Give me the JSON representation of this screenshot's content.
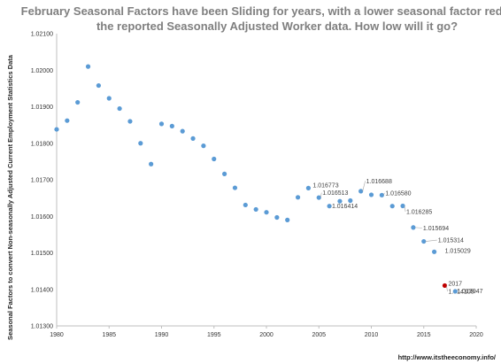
{
  "chart_data": {
    "type": "scatter",
    "title_lines": [
      "February Seasonal Factors have been Sliding for years, with a lower seasonal factor reducing",
      "the reported Seasonally Adjusted Worker data. How low will it go?"
    ],
    "ylabel": "Seasonal Factors to convert Non-seasonally Adjusted Current Employment Statistics Data",
    "xlabel": "",
    "xlim": [
      1980,
      2020
    ],
    "ylim": [
      1.013,
      1.021
    ],
    "x_ticks": [
      "1980",
      "1985",
      "1990",
      "1995",
      "2000",
      "2005",
      "2010",
      "2015",
      "2020"
    ],
    "y_ticks": [
      "1.01300",
      "1.01400",
      "1.01500",
      "1.01600",
      "1.01700",
      "1.01800",
      "1.01900",
      "1.02000",
      "1.02100"
    ],
    "grid": false,
    "legend": "none",
    "colors": {
      "series": "#5b9bd5",
      "highlight": "#c00000",
      "leader": "#a6a6a6",
      "title": "#7f7f7f"
    },
    "points": [
      {
        "x": 1980,
        "y": 1.01838
      },
      {
        "x": 1981,
        "y": 1.01862
      },
      {
        "x": 1982,
        "y": 1.01912
      },
      {
        "x": 1983,
        "y": 1.0201
      },
      {
        "x": 1984,
        "y": 1.01958
      },
      {
        "x": 1985,
        "y": 1.01923
      },
      {
        "x": 1986,
        "y": 1.01895
      },
      {
        "x": 1987,
        "y": 1.0186
      },
      {
        "x": 1988,
        "y": 1.018
      },
      {
        "x": 1989,
        "y": 1.01743
      },
      {
        "x": 1990,
        "y": 1.01853
      },
      {
        "x": 1991,
        "y": 1.01847
      },
      {
        "x": 1992,
        "y": 1.01833
      },
      {
        "x": 1993,
        "y": 1.01813
      },
      {
        "x": 1994,
        "y": 1.01793
      },
      {
        "x": 1995,
        "y": 1.01757
      },
      {
        "x": 1996,
        "y": 1.01716
      },
      {
        "x": 1997,
        "y": 1.01678
      },
      {
        "x": 1998,
        "y": 1.01631
      },
      {
        "x": 1999,
        "y": 1.01619
      },
      {
        "x": 2000,
        "y": 1.01611
      },
      {
        "x": 2001,
        "y": 1.01597
      },
      {
        "x": 2002,
        "y": 1.0159
      },
      {
        "x": 2003,
        "y": 1.01652
      },
      {
        "x": 2004,
        "y": 1.016773,
        "label": "1.016773"
      },
      {
        "x": 2005,
        "y": 1.016513,
        "label": "1.016513"
      },
      {
        "x": 2006,
        "y": 1.01628
      },
      {
        "x": 2007,
        "y": 1.016414,
        "label": "1.016414"
      },
      {
        "x": 2008,
        "y": 1.01643
      },
      {
        "x": 2009,
        "y": 1.016688,
        "label": "1.016688"
      },
      {
        "x": 2010,
        "y": 1.01659
      },
      {
        "x": 2011,
        "y": 1.01658,
        "label": "1.016580"
      },
      {
        "x": 2012,
        "y": 1.01628
      },
      {
        "x": 2013,
        "y": 1.016285,
        "label": "1.016285"
      },
      {
        "x": 2014,
        "y": 1.015694,
        "label": "1.015694"
      },
      {
        "x": 2015,
        "y": 1.015314,
        "label": "1.015314"
      },
      {
        "x": 2016,
        "y": 1.015029,
        "label": "1.015029"
      },
      {
        "x": 2017,
        "y": 1.014105,
        "label": "1.014105",
        "label_prefix": "2017",
        "highlight": true
      },
      {
        "x": 2018,
        "y": 1.013947,
        "label": "1.013947"
      }
    ]
  },
  "footer": {
    "source": "http://www.itstheeconomy.info/"
  }
}
